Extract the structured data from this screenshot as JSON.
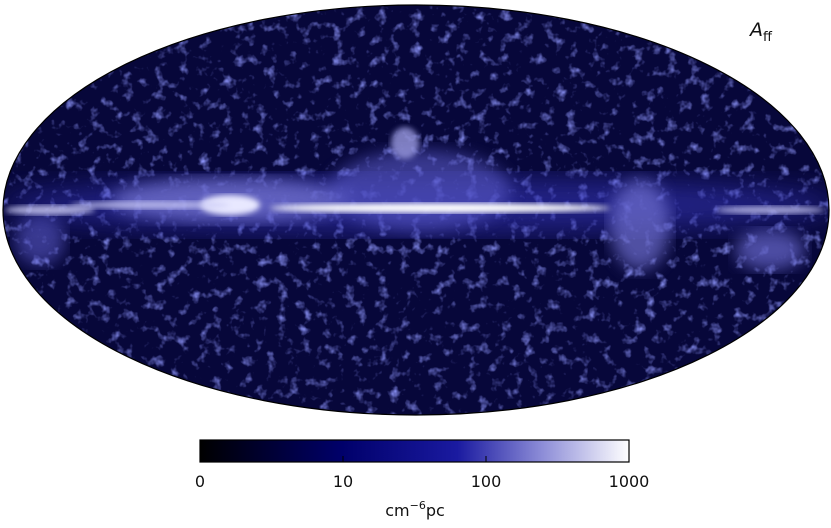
{
  "map": {
    "label": {
      "symbol": "A",
      "subscript": "ff"
    }
  },
  "colorbar": {
    "ticks": [
      0,
      10,
      100,
      1000
    ],
    "label": {
      "base": "cm",
      "exponent": "−6",
      "unit": "pc"
    }
  }
}
